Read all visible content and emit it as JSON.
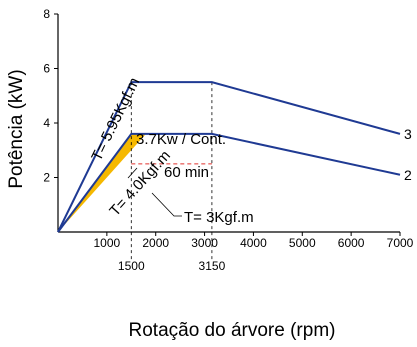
{
  "chart_data": {
    "type": "line",
    "title": "",
    "xlabel": "Rotação do árvore (rpm)",
    "ylabel": "Potência (kW)",
    "xlim": [
      0,
      7000
    ],
    "ylim": [
      0,
      8
    ],
    "x_ticks": [
      "1000",
      "2000",
      "3000",
      "4000",
      "5000",
      "6000",
      "7000"
    ],
    "y_ticks": [
      "2",
      "4",
      "6",
      "8"
    ],
    "x_extra_ticks": [
      "1500",
      "3150"
    ],
    "grid": false,
    "series": [
      {
        "name": "",
        "end_label": "3",
        "color": "#1f3a93",
        "x": [
          0,
          1500,
          3150,
          7000
        ],
        "y": [
          0,
          5.5,
          5.5,
          3.6
        ]
      },
      {
        "name": "",
        "end_label": "2",
        "color": "#1f3a93",
        "x": [
          0,
          1500,
          3150,
          7000
        ],
        "y": [
          0,
          3.6,
          3.6,
          2.1
        ]
      }
    ],
    "shaded_region": {
      "color": "#f5b800",
      "x": [
        0,
        1500,
        1800,
        0
      ],
      "y": [
        0,
        3.6,
        3.6,
        0
      ]
    },
    "dashed_line": {
      "color": "#e0302c",
      "x": [
        1500,
        3150
      ],
      "y": [
        2.5,
        2.5
      ]
    },
    "reference_lines": [
      {
        "x": 1500,
        "y_range": [
          0,
          5.5
        ]
      },
      {
        "x": 3150,
        "y_range": [
          0,
          5.5
        ]
      }
    ],
    "annotations": {
      "t_595": "T= 5.95Kgf.m",
      "t_40": "T= 4.0Kgf.m",
      "cont": "3.7Kw / Cont.",
      "min60": "60 min",
      "t_3": "T= 3Kgf.m"
    }
  }
}
